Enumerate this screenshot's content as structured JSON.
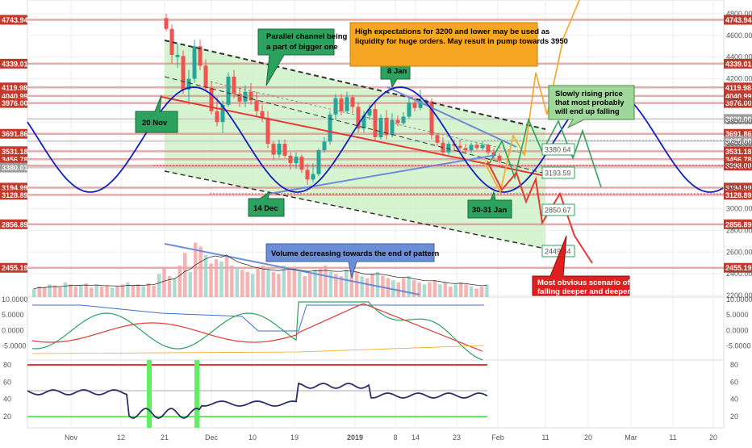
{
  "chart_data": [
    {
      "type": "candlestick",
      "symbol": "BTCUSD",
      "ylim": [
        2200,
        4800
      ],
      "x_ticks": [
        "Nov",
        "12",
        "21",
        "Dec",
        "10",
        "19",
        "2019",
        "8",
        "14",
        "23",
        "Feb",
        "11",
        "20",
        "Mar",
        "11",
        "20"
      ],
      "right_price_ticks": [
        "4800.00",
        "4600.00",
        "4400.00",
        "4200.00",
        "4000.00",
        "3800.00",
        "3600.00",
        "3400.00",
        "3200.00",
        "3000.00",
        "2800.00",
        "2600.00",
        "2400.00",
        "2200.00"
      ],
      "level_labels": [
        4743.94,
        4339.01,
        4119.98,
        4040.99,
        3976.0,
        3829.0,
        3691.86,
        3625.0,
        3531.18,
        3456.78,
        3398.0,
        3380.01,
        3194.99,
        3128.89,
        2856.89,
        2455.19
      ],
      "level_labels_right_only": [
        3829.0,
        3625.0
      ],
      "level_labels_left_only": [
        3380.01
      ],
      "target_boxes": [
        "3380.64",
        "3193.59",
        "2850.67",
        "2449.84"
      ],
      "candles": [
        [
          3,
          4760,
          4800,
          4640,
          4660
        ],
        [
          4,
          4660,
          4700,
          4340,
          4420
        ],
        [
          5,
          4400,
          4520,
          4300,
          4420
        ],
        [
          6,
          4410,
          4460,
          4060,
          4100
        ],
        [
          7,
          4100,
          4280,
          3960,
          4200
        ],
        [
          8,
          4200,
          4560,
          4160,
          4500
        ],
        [
          9,
          4500,
          4560,
          4280,
          4320
        ],
        [
          10,
          4320,
          4380,
          4080,
          4120
        ],
        [
          11,
          4120,
          4180,
          3870,
          3900
        ],
        [
          12,
          3900,
          4030,
          3760,
          3800
        ],
        [
          13,
          3800,
          4000,
          3700,
          3960
        ],
        [
          14,
          3960,
          4260,
          3940,
          4220
        ],
        [
          15,
          4220,
          4280,
          4020,
          4060
        ],
        [
          16,
          4060,
          4120,
          3940,
          3990
        ],
        [
          17,
          3990,
          4140,
          3940,
          4080
        ],
        [
          18,
          4080,
          4160,
          3960,
          4000
        ],
        [
          19,
          4000,
          4080,
          3860,
          3900
        ],
        [
          20,
          3900,
          3960,
          3800,
          3840
        ],
        [
          21,
          3840,
          3900,
          3560,
          3600
        ],
        [
          22,
          3600,
          3620,
          3450,
          3500
        ],
        [
          23,
          3500,
          3640,
          3470,
          3600
        ],
        [
          24,
          3600,
          3640,
          3470,
          3490
        ],
        [
          25,
          3490,
          3520,
          3360,
          3420
        ],
        [
          26,
          3420,
          3520,
          3370,
          3480
        ],
        [
          27,
          3480,
          3500,
          3330,
          3360
        ],
        [
          28,
          3360,
          3420,
          3220,
          3270
        ],
        [
          29,
          3270,
          3420,
          3240,
          3320
        ],
        [
          30,
          3320,
          3560,
          3300,
          3540
        ],
        [
          31,
          3540,
          3660,
          3520,
          3620
        ],
        [
          32,
          3620,
          3900,
          3590,
          3870
        ],
        [
          33,
          3870,
          4060,
          3820,
          4020
        ],
        [
          34,
          4020,
          4060,
          3860,
          3900
        ],
        [
          35,
          3900,
          4080,
          3880,
          4030
        ],
        [
          36,
          4030,
          4050,
          3880,
          3940
        ],
        [
          37,
          3940,
          3980,
          3700,
          3740
        ],
        [
          38,
          3740,
          3900,
          3700,
          3860
        ],
        [
          39,
          3860,
          3960,
          3820,
          3920
        ],
        [
          40,
          3920,
          3990,
          3620,
          3660
        ],
        [
          41,
          3660,
          3870,
          3640,
          3840
        ],
        [
          42,
          3840,
          3910,
          3640,
          3680
        ],
        [
          43,
          3680,
          3880,
          3660,
          3820
        ],
        [
          44,
          3820,
          3860,
          3760,
          3790
        ],
        [
          45,
          3790,
          3890,
          3770,
          3850
        ],
        [
          46,
          3850,
          4040,
          3830,
          3980
        ],
        [
          47,
          3980,
          4030,
          3900,
          3930
        ],
        [
          48,
          3930,
          4100,
          3910,
          4000
        ],
        [
          49,
          4000,
          4020,
          3960,
          3990
        ],
        [
          50,
          3990,
          4020,
          3640,
          3680
        ],
        [
          51,
          3680,
          3700,
          3580,
          3610
        ],
        [
          52,
          3610,
          3660,
          3500,
          3520
        ],
        [
          53,
          3520,
          3620,
          3500,
          3600
        ],
        [
          54,
          3600,
          3640,
          3540,
          3580
        ],
        [
          55,
          3580,
          3640,
          3540,
          3560
        ],
        [
          56,
          3560,
          3600,
          3520,
          3540
        ],
        [
          57,
          3540,
          3610,
          3520,
          3590
        ],
        [
          58,
          3590,
          3610,
          3540,
          3560
        ],
        [
          59,
          3560,
          3620,
          3540,
          3590
        ],
        [
          60,
          3590,
          3600,
          3500,
          3520
        ],
        [
          61,
          3520,
          3560,
          3460,
          3490
        ],
        [
          62,
          3490,
          3510,
          3420,
          3440
        ]
      ],
      "volume": {
        "values": [
          8,
          10,
          9,
          12,
          11,
          9,
          14,
          12,
          10,
          11,
          13,
          9,
          12,
          10,
          11,
          9,
          10,
          12,
          14,
          11,
          12,
          10,
          13,
          11,
          22,
          28,
          20,
          18,
          30,
          42,
          24,
          52,
          48,
          40,
          32,
          36,
          34,
          38,
          30,
          28,
          26,
          24,
          22,
          28,
          30,
          26,
          24,
          22,
          30,
          26,
          28,
          24,
          20,
          22,
          26,
          28,
          30,
          24,
          22,
          20,
          26,
          22,
          24,
          20,
          18,
          22,
          24,
          20,
          18,
          16,
          14,
          18,
          20,
          16,
          14,
          12,
          14,
          16,
          12,
          14,
          10,
          12,
          14,
          12,
          10,
          8,
          10,
          12
        ],
        "trend_label": "Volume decreasing towards the end of pattern"
      },
      "annotations": [
        {
          "text": "Parallel channel being a part of bigger one",
          "color": "#2ca25f"
        },
        {
          "text": "8 Jan",
          "color": "#2ca25f"
        },
        {
          "text": "20 Nov",
          "color": "#2ca25f"
        },
        {
          "text": "14 Dec",
          "color": "#2ca25f"
        },
        {
          "text": "30-31 Jan",
          "color": "#2ca25f"
        },
        {
          "text": "High expectations for 3200 and lower may be used as liquidity for huge orders. May result in pump towards 3950",
          "color": "#f5a623"
        },
        {
          "text": "Slowly rising price that most probably will end up falling",
          "color": "#9fd89a"
        },
        {
          "text": "Most obvious scenario of falling deeper and deeper",
          "color": "#e02020"
        }
      ]
    },
    {
      "type": "line",
      "name": "oscillator",
      "y_ticks": [
        "10.0000",
        "5.0000",
        "0.0000",
        "-5.0000"
      ],
      "ylim": [
        -8,
        10
      ]
    },
    {
      "type": "line",
      "name": "rsi",
      "y_ticks": [
        "80",
        "60",
        "40",
        "20"
      ],
      "ylim": [
        0,
        90
      ],
      "upper_level": 80,
      "lower_level": 20
    }
  ],
  "colors": {
    "candle_up": "#26a69a",
    "candle_down": "#ef5350",
    "level_label_bg": "#c0392b",
    "level_label_gray": "#9e9e9e",
    "channel_fill": "#c8f0c0",
    "sine_wave": "#1020c0",
    "trend_red": "#e53935"
  }
}
